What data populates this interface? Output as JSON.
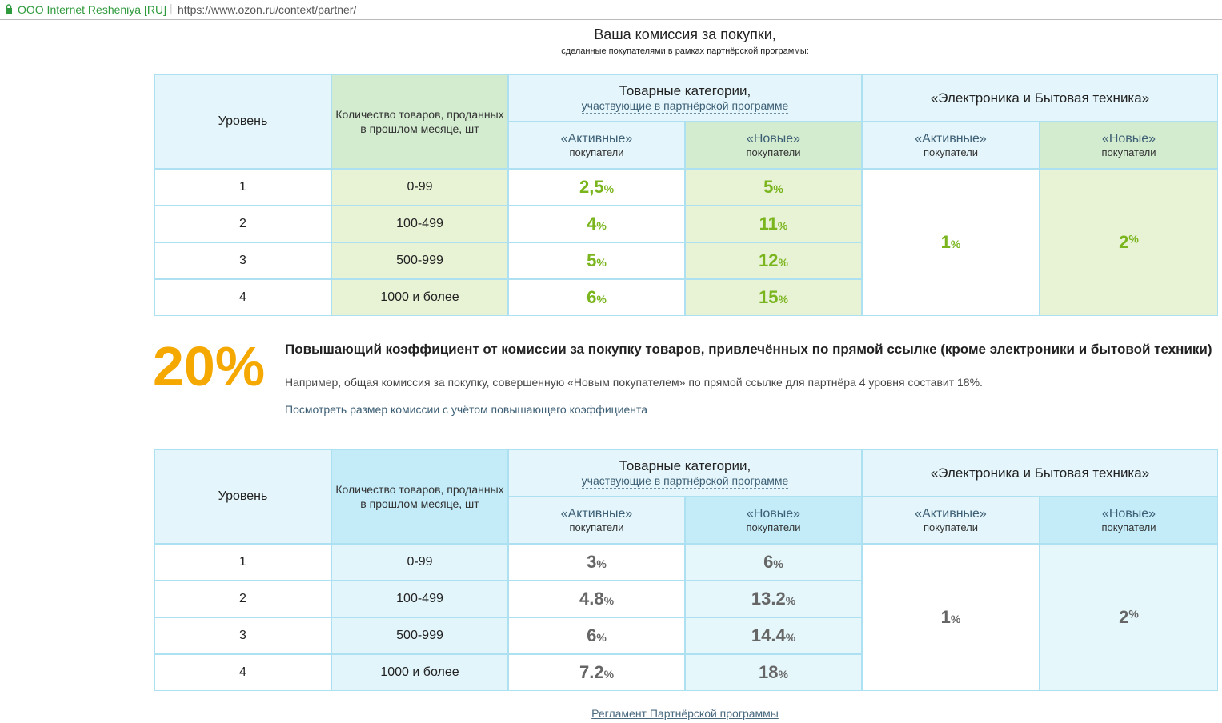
{
  "browser": {
    "site_name": "ООО Internet Resheniya [RU]",
    "url": "https://www.ozon.ru/context/partner/"
  },
  "title": "Ваша комиссия за покупки,",
  "subtitle": "сделанные покупателями в рамках партнёрской программы:",
  "tables": [
    {
      "header": {
        "level": "Уровень",
        "count": "Количество товаров, проданных в прошлом месяце, шт",
        "categories": "Товарные категории,",
        "categories_note": "участвующие в партнёрской программе",
        "electronics": "«Электроника и Бытовая техника»",
        "active": "«Активные»",
        "new": "«Новые»",
        "buyers": "покупатели"
      },
      "rows": [
        {
          "level": "1",
          "count": "0-99",
          "active": {
            "value": "2,5",
            "unit": "%"
          },
          "new": {
            "value": "5",
            "unit": "%"
          }
        },
        {
          "level": "2",
          "count": "100-499",
          "active": {
            "value": "4",
            "unit": "%"
          },
          "new": {
            "value": "11",
            "unit": "%"
          }
        },
        {
          "level": "3",
          "count": "500-999",
          "active": {
            "value": "5",
            "unit": "%"
          },
          "new": {
            "value": "12",
            "unit": "%"
          }
        },
        {
          "level": "4",
          "count": "1000 и более",
          "active": {
            "value": "6",
            "unit": "%"
          },
          "new": {
            "value": "15",
            "unit": "%"
          }
        }
      ],
      "electronics": {
        "active": {
          "value": "1",
          "unit": "%"
        },
        "new": {
          "value": "2",
          "unit": "%"
        }
      }
    },
    {
      "header": {
        "level": "Уровень",
        "count": "Количество товаров, проданных в прошлом месяце, шт",
        "categories": "Товарные категории,",
        "categories_note": "участвующие в партнёрской программе",
        "electronics": "«Электроника и Бытовая техника»",
        "active": "«Активные»",
        "new": "«Новые»",
        "buyers": "покупатели"
      },
      "rows": [
        {
          "level": "1",
          "count": "0-99",
          "active": {
            "value": "3",
            "unit": "%"
          },
          "new": {
            "value": "6",
            "unit": "%"
          }
        },
        {
          "level": "2",
          "count": "100-499",
          "active": {
            "value": "4.8",
            "unit": "%"
          },
          "new": {
            "value": "13.2",
            "unit": "%"
          }
        },
        {
          "level": "3",
          "count": "500-999",
          "active": {
            "value": "6",
            "unit": "%"
          },
          "new": {
            "value": "14.4",
            "unit": "%"
          }
        },
        {
          "level": "4",
          "count": "1000 и более",
          "active": {
            "value": "7.2",
            "unit": "%"
          },
          "new": {
            "value": "18",
            "unit": "%"
          }
        }
      ],
      "electronics": {
        "active": {
          "value": "1",
          "unit": "%"
        },
        "new": {
          "value": "2",
          "unit": "%"
        }
      }
    }
  ],
  "bonus": {
    "value": "20%",
    "heading": "Повышающий коэффициент от комиссии за покупку товаров, привлечённых по прямой ссылке (кроме электроники и бытовой техники)",
    "example": "Например, общая комиссия за покупку, совершенную «Новым покупателем» по прямой ссылке для партнёра 4 уровня составит 18%.",
    "link": "Посмотреть размер комиссии с учётом повышающего коэффициента"
  },
  "footer_link": "Регламент Партнёрской программы"
}
